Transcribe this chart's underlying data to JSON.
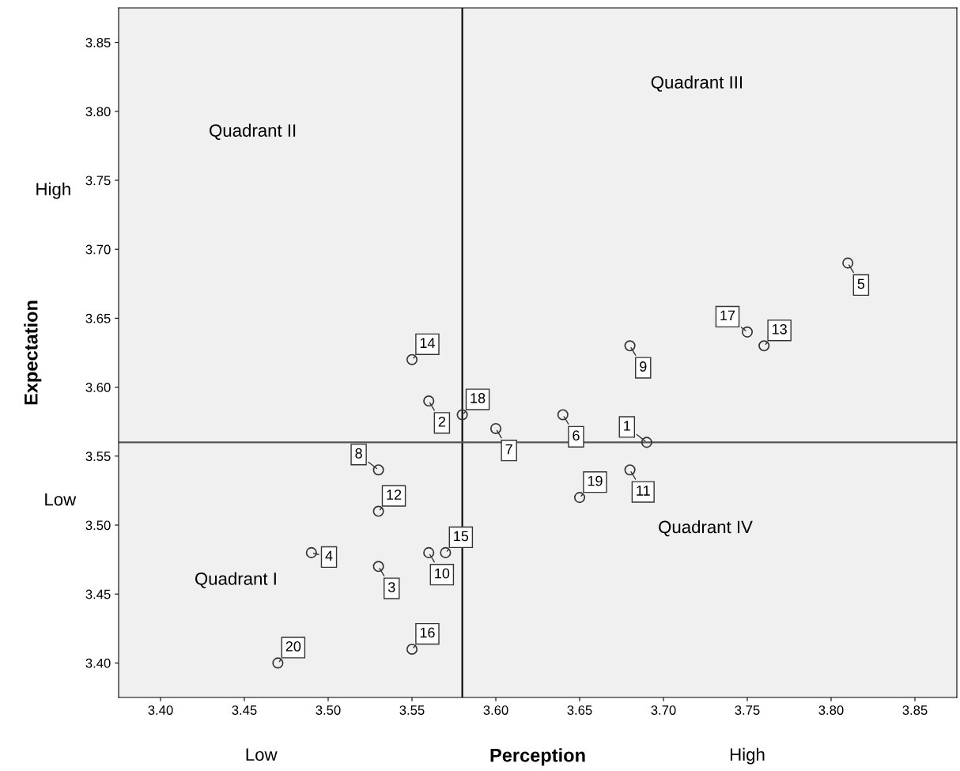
{
  "chart_data": {
    "type": "scatter",
    "xlabel": "Perception",
    "ylabel": "Expectation",
    "x": [
      3.69,
      3.56,
      3.53,
      3.49,
      3.81,
      3.64,
      3.6,
      3.53,
      3.68,
      3.56,
      3.68,
      3.53,
      3.76,
      3.55,
      3.57,
      3.55,
      3.75,
      3.58,
      3.65,
      3.47
    ],
    "values": [
      3.56,
      3.59,
      3.47,
      3.48,
      3.69,
      3.58,
      3.57,
      3.54,
      3.63,
      3.48,
      3.54,
      3.51,
      3.63,
      3.62,
      3.48,
      3.41,
      3.64,
      3.58,
      3.52,
      3.4
    ],
    "color": "#333333",
    "marker": "circle",
    "grid": false,
    "legend": false,
    "xlim": [
      3.375,
      3.875
    ],
    "ylim": [
      3.375,
      3.875
    ],
    "xticks": [
      {
        "value": 3.4,
        "label": "3.40"
      },
      {
        "value": 3.45,
        "label": "3.45"
      },
      {
        "value": 3.5,
        "label": "3.50"
      },
      {
        "value": 3.55,
        "label": "3.55"
      },
      {
        "value": 3.6,
        "label": "3.60"
      },
      {
        "value": 3.65,
        "label": "3.65"
      },
      {
        "value": 3.7,
        "label": "3.70"
      },
      {
        "value": 3.75,
        "label": "3.75"
      },
      {
        "value": 3.8,
        "label": "3.80"
      },
      {
        "value": 3.85,
        "label": "3.85"
      }
    ],
    "yticks": [
      {
        "value": 3.4,
        "label": "3.40"
      },
      {
        "value": 3.45,
        "label": "3.45"
      },
      {
        "value": 3.5,
        "label": "3.50"
      },
      {
        "value": 3.55,
        "label": "3.55"
      },
      {
        "value": 3.6,
        "label": "3.60"
      },
      {
        "value": 3.65,
        "label": "3.65"
      },
      {
        "value": 3.7,
        "label": "3.70"
      },
      {
        "value": 3.75,
        "label": "3.75"
      },
      {
        "value": 3.8,
        "label": "3.80"
      },
      {
        "value": 3.85,
        "label": "3.85"
      }
    ],
    "ref_lines": [
      {
        "axis": "x",
        "value": 3.58,
        "color": "#000000"
      },
      {
        "axis": "y",
        "value": 3.56,
        "color": "#555555"
      }
    ],
    "annotations": [
      "Quadrant II",
      "Quadrant III",
      "Quadrant IV",
      "Quadrant I",
      "High",
      "Low",
      "Low",
      "High",
      {
        "text": "1",
        "x": 3.69,
        "y": 3.56
      },
      {
        "text": "2",
        "x": 3.56,
        "y": 3.59
      },
      {
        "text": "3",
        "x": 3.53,
        "y": 3.47
      },
      {
        "text": "4",
        "x": 3.49,
        "y": 3.48
      },
      {
        "text": "5",
        "x": 3.81,
        "y": 3.69
      },
      {
        "text": "6",
        "x": 3.64,
        "y": 3.58
      },
      {
        "text": "7",
        "x": 3.6,
        "y": 3.57
      },
      {
        "text": "8",
        "x": 3.53,
        "y": 3.54
      },
      {
        "text": "9",
        "x": 3.68,
        "y": 3.63
      },
      {
        "text": "10",
        "x": 3.56,
        "y": 3.48
      },
      {
        "text": "11",
        "x": 3.68,
        "y": 3.54
      },
      {
        "text": "12",
        "x": 3.53,
        "y": 3.51
      },
      {
        "text": "13",
        "x": 3.76,
        "y": 3.63
      },
      {
        "text": "14",
        "x": 3.55,
        "y": 3.62
      },
      {
        "text": "15",
        "x": 3.57,
        "y": 3.48
      },
      {
        "text": "16",
        "x": 3.55,
        "y": 3.41
      },
      {
        "text": "17",
        "x": 3.75,
        "y": 3.64
      },
      {
        "text": "18",
        "x": 3.58,
        "y": 3.58
      },
      {
        "text": "19",
        "x": 3.65,
        "y": 3.52
      },
      {
        "text": "20",
        "x": 3.47,
        "y": 3.4
      }
    ]
  }
}
